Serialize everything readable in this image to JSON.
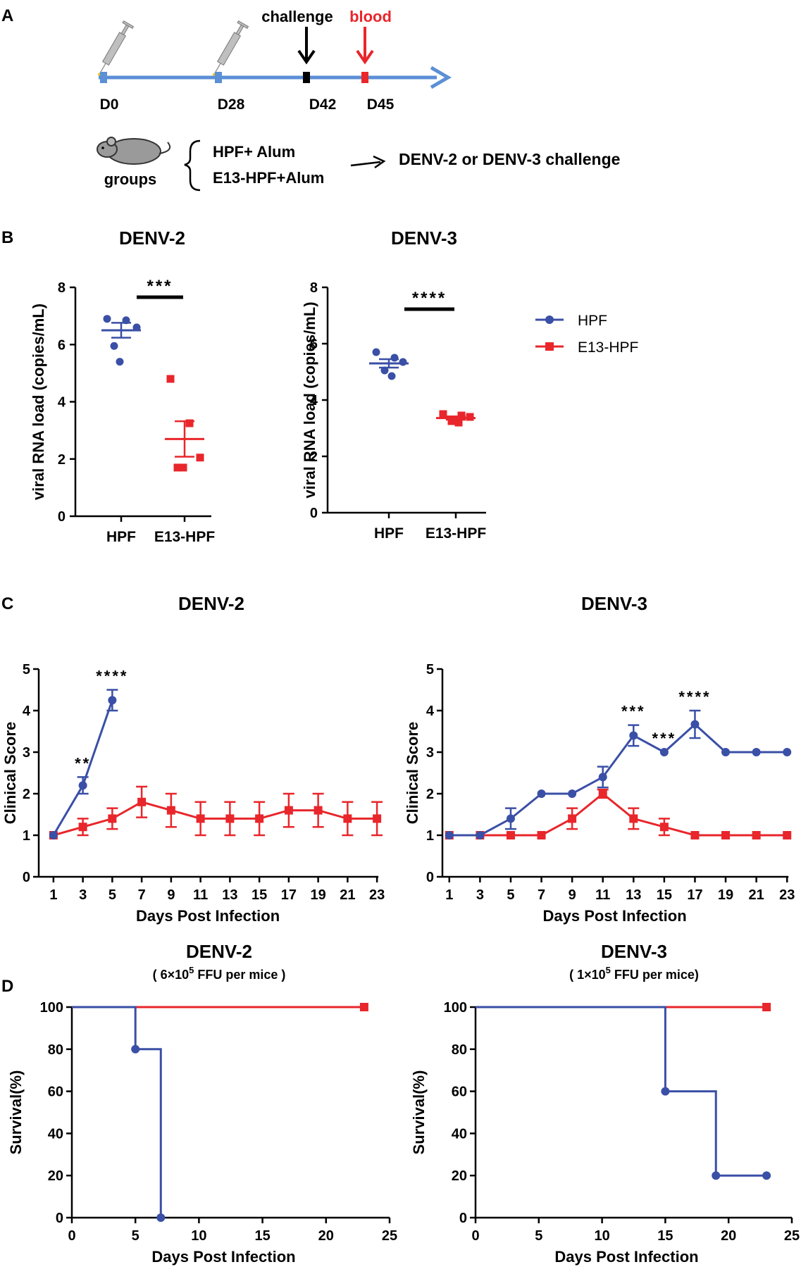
{
  "panel_labels": {
    "A": "A",
    "B": "B",
    "C": "C",
    "D": "D"
  },
  "colors": {
    "hpf": "#3a4fa6",
    "e13": "#e8262b",
    "timeline": "#5b8fd6",
    "black": "#000000"
  },
  "legend": {
    "hpf": "HPF",
    "e13": "E13-HPF"
  },
  "schedule": {
    "days": [
      "D0",
      "D28",
      "D42",
      "D45"
    ],
    "challenge_label": "challenge",
    "blood_label": "blood",
    "groups_label": "groups",
    "group_1": "HPF+ Alum",
    "group_2": "E13-HPF+Alum",
    "challenge_text": "DENV-2 or DENV-3 challenge"
  },
  "chart_data": [
    {
      "id": "B1",
      "type": "scatter",
      "title": "DENV-2",
      "ylabel": "viral RNA load (copies/mL)",
      "ylim": [
        0,
        8
      ],
      "yticks": [
        "0",
        "2",
        "4",
        "6",
        "8"
      ],
      "categories": [
        "HPF",
        "E13-HPF"
      ],
      "series": [
        {
          "name": "HPF",
          "values": [
            6.9,
            6.85,
            6.6,
            5.95,
            5.4
          ],
          "mean": 6.5,
          "sem": 0.26
        },
        {
          "name": "E13-HPF",
          "values": [
            4.8,
            3.25,
            2.05,
            1.7,
            1.7
          ],
          "mean": 2.7,
          "sem": 0.62
        }
      ],
      "significance": "***"
    },
    {
      "id": "B2",
      "type": "scatter",
      "title": "DENV-3",
      "ylabel": "viral RNA load (copies/mL)",
      "ylim": [
        0,
        8
      ],
      "yticks": [
        "0",
        "2",
        "4",
        "6",
        "8"
      ],
      "categories": [
        "HPF",
        "E13-HPF"
      ],
      "series": [
        {
          "name": "HPF",
          "values": [
            5.7,
            5.5,
            5.35,
            5.05,
            4.85
          ],
          "mean": 5.3,
          "sem": 0.15
        },
        {
          "name": "E13-HPF",
          "values": [
            3.5,
            3.45,
            3.4,
            3.25,
            3.2
          ],
          "mean": 3.36,
          "sem": 0.06
        }
      ],
      "significance": "****"
    },
    {
      "id": "C1",
      "type": "line",
      "title": "DENV-2",
      "xlabel": "Days Post Infection",
      "ylabel": "Clinical Score",
      "xlim": [
        0,
        24
      ],
      "ylim": [
        0,
        5
      ],
      "xticks": [
        "1",
        "3",
        "5",
        "7",
        "9",
        "11",
        "13",
        "15",
        "17",
        "19",
        "21",
        "23"
      ],
      "yticks": [
        "0",
        "1",
        "2",
        "3",
        "4",
        "5"
      ],
      "series": [
        {
          "name": "HPF",
          "x": [
            1,
            3,
            5
          ],
          "values": [
            1.0,
            2.2,
            4.25
          ],
          "err": [
            0,
            0.2,
            0.25
          ]
        },
        {
          "name": "E13-HPF",
          "x": [
            1,
            3,
            5,
            7,
            9,
            11,
            13,
            15,
            17,
            19,
            21,
            23
          ],
          "values": [
            1.0,
            1.2,
            1.4,
            1.8,
            1.6,
            1.4,
            1.4,
            1.4,
            1.6,
            1.6,
            1.4,
            1.4
          ],
          "err": [
            0,
            0.2,
            0.25,
            0.37,
            0.4,
            0.4,
            0.4,
            0.4,
            0.4,
            0.4,
            0.4,
            0.4
          ]
        }
      ],
      "annotations": [
        {
          "x": 3,
          "text": "**"
        },
        {
          "x": 5,
          "text": "****"
        }
      ]
    },
    {
      "id": "C2",
      "type": "line",
      "title": "DENV-3",
      "xlabel": "Days Post Infection",
      "ylabel": "Clinical Score",
      "xlim": [
        0,
        24
      ],
      "ylim": [
        0,
        5
      ],
      "xticks": [
        "1",
        "3",
        "5",
        "7",
        "9",
        "11",
        "13",
        "15",
        "17",
        "19",
        "21",
        "23"
      ],
      "yticks": [
        "0",
        "1",
        "2",
        "3",
        "4",
        "5"
      ],
      "series": [
        {
          "name": "HPF",
          "x": [
            1,
            3,
            5,
            7,
            9,
            11,
            13,
            15,
            17,
            19,
            21,
            23
          ],
          "values": [
            1.0,
            1.0,
            1.4,
            2.0,
            2.0,
            2.4,
            3.4,
            3.0,
            3.67,
            3.0,
            3.0,
            3.0
          ],
          "err": [
            0,
            0,
            0.25,
            0,
            0,
            0.25,
            0.25,
            0,
            0.33,
            0,
            0,
            0
          ]
        },
        {
          "name": "E13-HPF",
          "x": [
            1,
            3,
            5,
            7,
            9,
            11,
            13,
            15,
            17,
            19,
            21,
            23
          ],
          "values": [
            1.0,
            1.0,
            1.0,
            1.0,
            1.4,
            2.0,
            1.4,
            1.2,
            1.0,
            1.0,
            1.0,
            1.0
          ],
          "err": [
            0,
            0,
            0,
            0,
            0.25,
            0.1,
            0.25,
            0.2,
            0,
            0,
            0,
            0
          ]
        }
      ],
      "annotations": [
        {
          "x": 13,
          "text": "***"
        },
        {
          "x": 15,
          "text": "***"
        },
        {
          "x": 17,
          "text": "****"
        }
      ]
    },
    {
      "id": "D1",
      "type": "line",
      "title": "DENV-2",
      "subtitle": {
        "pre": "( 6×10",
        "sup": "5",
        "post": " FFU per mice )"
      },
      "xlabel": "Days Post Infection",
      "ylabel": "Survival(%)",
      "xlim": [
        0,
        25
      ],
      "ylim": [
        0,
        100
      ],
      "xticks": [
        "0",
        "5",
        "10",
        "15",
        "20",
        "25"
      ],
      "yticks": [
        "0",
        "20",
        "40",
        "60",
        "80",
        "100"
      ],
      "series": [
        {
          "name": "HPF",
          "steps": [
            [
              0,
              100
            ],
            [
              5,
              80
            ],
            [
              7,
              0
            ]
          ],
          "markers": [
            [
              5,
              80
            ],
            [
              7,
              0
            ]
          ]
        },
        {
          "name": "E13-HPF",
          "steps": [
            [
              0,
              100
            ],
            [
              23,
              100
            ]
          ],
          "markers": [
            [
              23,
              100
            ]
          ]
        }
      ]
    },
    {
      "id": "D2",
      "type": "line",
      "title": "DENV-3",
      "subtitle": {
        "pre": "( 1×10",
        "sup": "5",
        "post": " FFU per mice)"
      },
      "xlabel": "Days Post Infection",
      "ylabel": "Survival(%)",
      "xlim": [
        0,
        25
      ],
      "ylim": [
        0,
        100
      ],
      "xticks": [
        "0",
        "5",
        "10",
        "15",
        "20",
        "25"
      ],
      "yticks": [
        "0",
        "20",
        "40",
        "60",
        "80",
        "100"
      ],
      "series": [
        {
          "name": "HPF",
          "steps": [
            [
              0,
              100
            ],
            [
              15,
              60
            ],
            [
              19,
              20
            ],
            [
              23,
              20
            ]
          ],
          "markers": [
            [
              15,
              60
            ],
            [
              19,
              20
            ],
            [
              23,
              20
            ]
          ]
        },
        {
          "name": "E13-HPF",
          "steps": [
            [
              0,
              100
            ],
            [
              23,
              100
            ]
          ],
          "markers": [
            [
              23,
              100
            ]
          ]
        }
      ]
    }
  ]
}
